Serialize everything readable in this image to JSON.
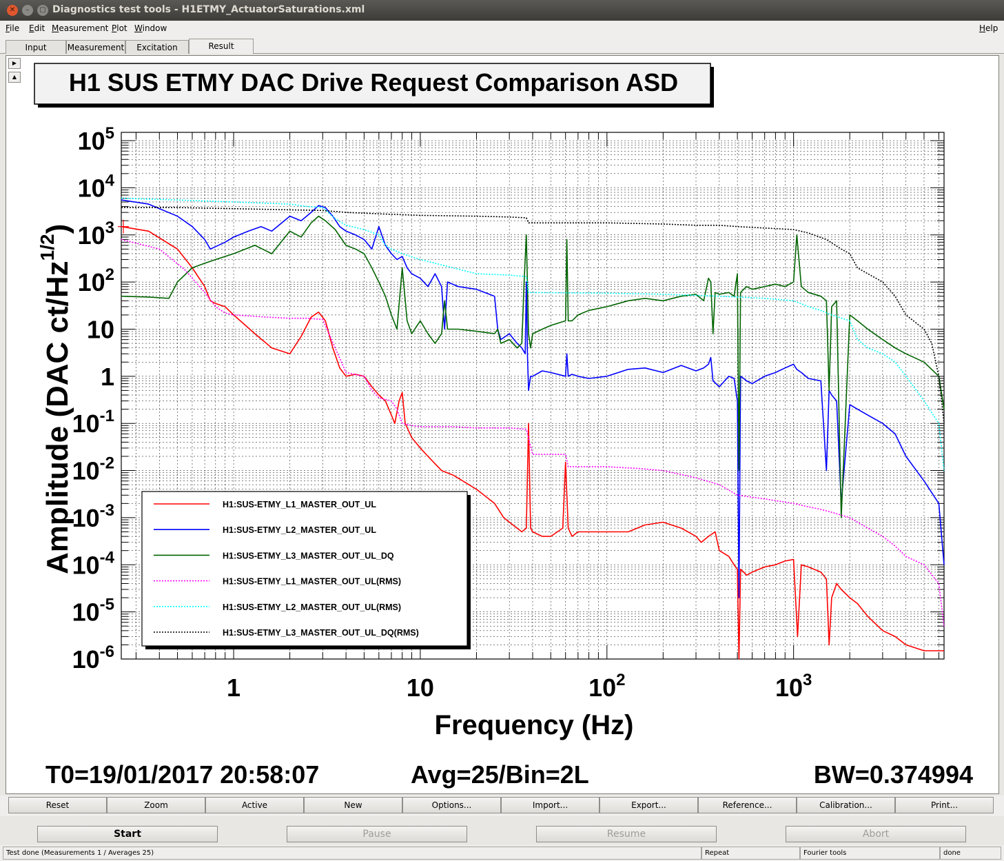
{
  "window": {
    "title": "Diagnostics test tools - H1ETMY_ActuatorSaturations.xml",
    "controls": [
      "✕",
      "–",
      "▢"
    ]
  },
  "menu": {
    "items": [
      {
        "label": "File",
        "u": "F",
        "rest": "ile"
      },
      {
        "label": "Edit",
        "u": "E",
        "rest": "dit"
      },
      {
        "label": "Measurement",
        "u": "M",
        "rest": "easurement"
      },
      {
        "label": "Plot",
        "u": "P",
        "rest": "lot"
      },
      {
        "label": "Window",
        "u": "W",
        "rest": "indow"
      }
    ],
    "help": {
      "label": "Help",
      "u": "H",
      "rest": "elp"
    }
  },
  "tabs": [
    {
      "label": "Input",
      "active": false
    },
    {
      "label": "Measurement",
      "active": false
    },
    {
      "label": "Excitation",
      "active": false
    },
    {
      "label": "Result",
      "active": true
    }
  ],
  "scroll": {
    "up": "▶",
    "down": "▲"
  },
  "plot_info": {
    "t0": "T0=19/01/2017 20:58:07",
    "avg": "Avg=25/Bin=2L",
    "bw": "BW=0.374994"
  },
  "chart_data": {
    "type": "line",
    "title": "H1 SUS ETMY  DAC Drive Request Comparison ASD",
    "xlabel": "Frequency (Hz)",
    "ylabel": "Amplitude (DAC ct/Hz",
    "ylabel_sup": "1/2",
    "ylabel_close": ")",
    "x_scale": "log",
    "y_scale": "log",
    "xlim": [
      0.25,
      6400
    ],
    "ylim": [
      1e-06,
      150000.0
    ],
    "grid": true,
    "legend_position": "bottom-left",
    "x_ticks": [
      {
        "v": 1,
        "base": "1",
        "exp": ""
      },
      {
        "v": 10,
        "base": "10",
        "exp": ""
      },
      {
        "v": 100,
        "base": "10",
        "exp": "2"
      },
      {
        "v": 1000,
        "base": "10",
        "exp": "3"
      }
    ],
    "y_ticks": [
      {
        "v": 100000,
        "base": "10",
        "exp": "5"
      },
      {
        "v": 10000,
        "base": "10",
        "exp": "4"
      },
      {
        "v": 1000,
        "base": "10",
        "exp": "3"
      },
      {
        "v": 100,
        "base": "10",
        "exp": "2"
      },
      {
        "v": 10,
        "base": "10",
        "exp": ""
      },
      {
        "v": 1,
        "base": "1",
        "exp": ""
      },
      {
        "v": 0.1,
        "base": "10",
        "exp": "-1"
      },
      {
        "v": 0.01,
        "base": "10",
        "exp": "-2"
      },
      {
        "v": 0.001,
        "base": "10",
        "exp": "-3"
      },
      {
        "v": 0.0001,
        "base": "10",
        "exp": "-4"
      },
      {
        "v": 1e-05,
        "base": "10",
        "exp": "-5"
      },
      {
        "v": 1e-06,
        "base": "10",
        "exp": "-6"
      }
    ],
    "series": [
      {
        "name": "H1:SUS-ETMY_L1_MASTER_OUT_UL",
        "color": "#ff0000",
        "dash": false,
        "x": [
          0.25,
          0.35,
          0.5,
          0.6,
          0.7,
          0.75,
          0.8,
          0.9,
          1.0,
          1.3,
          1.6,
          2.0,
          2.3,
          2.6,
          2.85,
          3.1,
          3.4,
          3.7,
          4.0,
          4.5,
          5.0,
          5.5,
          6.0,
          6.5,
          7.0,
          7.3,
          7.7,
          8.0,
          8.3,
          9.0,
          10,
          11,
          13,
          15,
          20,
          25,
          28,
          30,
          35,
          37,
          38,
          39,
          40,
          45,
          50,
          58,
          60,
          62,
          65,
          70,
          80,
          100,
          130,
          160,
          200,
          250,
          300,
          320,
          350,
          380,
          400,
          450,
          480,
          500,
          510,
          520,
          540,
          560,
          600,
          700,
          800,
          900,
          1000,
          1050,
          1100,
          1200,
          1400,
          1500,
          1550,
          1600,
          1700,
          1800,
          2000,
          2200,
          2500,
          3000,
          3500,
          4000,
          5000,
          6000,
          6400
        ],
        "y": [
          1500.0,
          1200.0,
          500.0,
          200.0,
          80.0,
          40.0,
          35.0,
          30.0,
          20.0,
          8,
          4,
          3,
          7,
          18.0,
          23.0,
          15.0,
          4,
          1.5,
          1,
          1.1,
          1,
          0.6,
          0.4,
          0.3,
          0.15,
          0.1,
          0.3,
          0.45,
          0.1,
          0.05,
          0.03,
          0.02,
          0.01,
          0.008,
          0.004,
          0.002,
          0.001,
          0.0008,
          0.0005,
          0.0006,
          0.1,
          0.0006,
          0.0005,
          0.0004,
          0.0004,
          0.0006,
          0.015,
          0.0006,
          0.0004,
          0.0005,
          0.0005,
          0.0005,
          0.0005,
          0.0007,
          0.0008,
          0.0006,
          0.0004,
          0.0003,
          0.0004,
          0.0005,
          0.0002,
          0.00015,
          0.0001,
          8e-05,
          1e-06,
          8e-05,
          7e-05,
          6e-05,
          7e-05,
          9e-05,
          0.0001,
          0.00012,
          0.00013,
          3e-06,
          0.0001,
          9e-05,
          7e-05,
          5e-05,
          2e-06,
          2e-05,
          4e-05,
          3e-05,
          2e-05,
          1.5e-05,
          8e-06,
          4e-06,
          3e-06,
          2e-06,
          1.5e-06,
          1.5e-06,
          1.5e-06
        ]
      },
      {
        "name": "H1:SUS-ETMY_L2_MASTER_OUT_UL",
        "color": "#0000ff",
        "dash": false,
        "x": [
          0.25,
          0.35,
          0.5,
          0.6,
          0.7,
          0.75,
          0.9,
          1.0,
          1.2,
          1.4,
          1.6,
          2.0,
          2.3,
          2.6,
          2.85,
          3.1,
          3.4,
          3.7,
          4.0,
          4.5,
          5.0,
          5.5,
          6.0,
          6.5,
          7.0,
          7.5,
          8.0,
          8.5,
          9.0,
          10,
          11,
          12,
          13,
          13.5,
          14,
          16,
          20,
          25,
          26,
          27,
          30,
          33,
          35,
          36.5,
          37,
          37.5,
          38,
          39,
          40,
          45,
          50,
          60,
          61,
          62,
          65,
          70,
          80,
          100,
          130,
          160,
          200,
          250,
          300,
          330,
          350,
          360,
          370,
          400,
          450,
          480,
          500,
          510,
          520,
          540,
          560,
          600,
          700,
          800,
          900,
          1000,
          1040,
          1100,
          1200,
          1400,
          1500,
          1550,
          1600,
          1700,
          1800,
          2000,
          2200,
          2500,
          3000,
          3500,
          4000,
          5000,
          6000,
          6400
        ],
        "y": [
          5500.0,
          4500.0,
          2500.0,
          1500.0,
          800.0,
          500.0,
          700.0,
          900.0,
          1200.0,
          1500.0,
          1200.0,
          2500.0,
          2000.0,
          3000.0,
          4200.0,
          3800.0,
          2500.0,
          1500.0,
          1200.0,
          1000.0,
          800.0,
          500.0,
          1500.0,
          600.0,
          400.0,
          300.0,
          350.0,
          200.0,
          150.0,
          120.0,
          80.0,
          150.0,
          80.0,
          10.0,
          100.0,
          80.0,
          70.0,
          50.0,
          10.0,
          6,
          8,
          5,
          4,
          3,
          100.0,
          3,
          0.5,
          1,
          1,
          1.3,
          1.2,
          1,
          3,
          1,
          1.1,
          1,
          0.9,
          1,
          1.4,
          1.5,
          1.2,
          1.7,
          1.3,
          1.5,
          1.8,
          2.5,
          0.8,
          0.6,
          1,
          0.9,
          0.3,
          2e-05,
          1,
          0.9,
          0.8,
          0.7,
          1,
          1.2,
          1.5,
          1.8,
          1.4,
          1.2,
          0.9,
          0.8,
          0.01,
          0.5,
          0.4,
          0.3,
          0.002,
          0.25,
          0.2,
          0.15,
          0.1,
          0.06,
          0.02,
          0.006,
          0.002,
          0.0001
        ]
      },
      {
        "name": "H1:SUS-ETMY_L3_MASTER_OUT_UL_DQ",
        "color": "#006400",
        "dash": false,
        "x": [
          0.25,
          0.35,
          0.45,
          0.5,
          0.6,
          0.7,
          0.8,
          1.0,
          1.3,
          1.6,
          2.0,
          2.3,
          2.6,
          2.85,
          3.1,
          3.5,
          4.0,
          4.5,
          5.0,
          5.5,
          6.0,
          6.5,
          7.0,
          7.5,
          8.0,
          8.5,
          9.0,
          10,
          11,
          12,
          13,
          13.5,
          14,
          16,
          20,
          25,
          26,
          27,
          30,
          33,
          35,
          36,
          37,
          38,
          39,
          40,
          45,
          50,
          60,
          61,
          62,
          65,
          70,
          80,
          100,
          130,
          160,
          200,
          250,
          300,
          330,
          350,
          360,
          370,
          380,
          400,
          450,
          480,
          500,
          510,
          520,
          540,
          560,
          600,
          700,
          800,
          900,
          1000,
          1040,
          1100,
          1200,
          1400,
          1500,
          1550,
          1600,
          1700,
          1800,
          2000,
          2200,
          2500,
          3000,
          3500,
          4000,
          5000,
          6000,
          6400
        ],
        "y": [
          50.0,
          48.0,
          45.0,
          100.0,
          200.0,
          250.0,
          300.0,
          400.0,
          600.0,
          400.0,
          1200.0,
          900.0,
          1800.0,
          2500.0,
          2000.0,
          1300.0,
          600.0,
          500.0,
          400.0,
          200.0,
          100.0,
          50.0,
          20.0,
          10.0,
          200.0,
          15.0,
          8,
          15.0,
          8,
          5,
          8,
          40.0,
          10.0,
          10.0,
          9,
          8,
          10.0,
          5,
          6,
          4,
          5,
          100.0,
          1000.0,
          8,
          4,
          8,
          10.0,
          12.0,
          15.0,
          800.0,
          15.0,
          15.0,
          20.0,
          25.0,
          30.0,
          40.0,
          45.0,
          40.0,
          50.0,
          55.0,
          40.0,
          120.0,
          100.0,
          8,
          60.0,
          55.0,
          60.0,
          50.0,
          150.0,
          0.01,
          60.0,
          70.0,
          80.0,
          70.0,
          80.0,
          90.0,
          80.0,
          100.0,
          1000.0,
          80.0,
          60.0,
          50.0,
          40.0,
          0.5,
          30.0,
          40.0,
          0.001,
          20.0,
          15.0,
          10.0,
          6,
          4,
          3,
          2,
          1,
          0.2
        ]
      },
      {
        "name": "H1:SUS-ETMY_L1_MASTER_OUT_UL(RMS)",
        "color": "#ff00ff",
        "dash": true,
        "x": [
          0.25,
          0.4,
          0.55,
          0.7,
          0.8,
          0.9,
          1.0,
          1.5,
          2.0,
          2.5,
          3.0,
          3.5,
          4.0,
          5.0,
          5.5,
          6.0,
          7.0,
          7.5,
          8.0,
          9.0,
          10,
          15,
          20,
          25,
          30,
          37,
          40,
          50,
          60,
          62,
          100,
          150,
          200,
          300,
          400,
          500,
          700,
          1000,
          1200,
          1400,
          1600,
          2000,
          2500,
          3000,
          3500,
          4000,
          5000,
          6000,
          6400
        ],
        "y": [
          800.0,
          500.0,
          180.0,
          60.0,
          30.0,
          22.0,
          20.0,
          18.0,
          17.0,
          17.0,
          16.0,
          4,
          1.2,
          1,
          0.5,
          0.35,
          0.3,
          0.2,
          0.1,
          0.09,
          0.085,
          0.085,
          0.08,
          0.08,
          0.08,
          0.075,
          0.022,
          0.022,
          0.022,
          0.012,
          0.012,
          0.011,
          0.01,
          0.007,
          0.005,
          0.003,
          0.0025,
          0.002,
          0.0017,
          0.0015,
          0.0013,
          0.001,
          0.0006,
          0.0004,
          0.00025,
          0.00015,
          0.0001,
          4e-05,
          5e-06
        ]
      },
      {
        "name": "H1:SUS-ETMY_L2_MASTER_OUT_UL(RMS)",
        "color": "#00ffff",
        "dash": true,
        "x": [
          0.25,
          0.5,
          1.0,
          1.5,
          2.0,
          2.5,
          3.0,
          3.5,
          4.0,
          5.0,
          6.0,
          6.5,
          7.0,
          8.0,
          10,
          15,
          20,
          30,
          37,
          38,
          100,
          200,
          300,
          400,
          500,
          700,
          1000,
          1200,
          1400,
          1600,
          2000,
          2200,
          2500,
          3000,
          3500,
          4000,
          5000,
          6000,
          6400
        ],
        "y": [
          6000.0,
          5500.0,
          5000.0,
          4700.0,
          4500.0,
          4000.0,
          3800.0,
          2200.0,
          1600.0,
          1300.0,
          1000.0,
          600.0,
          500.0,
          400.0,
          300.0,
          200.0,
          150.0,
          140.0,
          130.0,
          60.0,
          58.0,
          55.0,
          52.0,
          50.0,
          48.0,
          45.0,
          40.0,
          30.0,
          25.0,
          20.0,
          15.0,
          6,
          4,
          3,
          2,
          1,
          0.3,
          0.1,
          0.01
        ]
      },
      {
        "name": "H1:SUS-ETMY_L3_MASTER_OUT_UL_DQ(RMS)",
        "color": "#000000",
        "dash": true,
        "x": [
          0.25,
          0.5,
          1.0,
          2.0,
          3.0,
          4.0,
          6.0,
          10,
          20,
          30,
          37,
          38,
          50,
          100,
          200,
          300,
          400,
          500,
          700,
          1000,
          1200,
          1500,
          1800,
          2000,
          2200,
          2500,
          3000,
          3500,
          4000,
          5000,
          5500,
          6000,
          6400
        ],
        "y": [
          3800.0,
          3800.0,
          3600.0,
          3400.0,
          3300.0,
          3000.0,
          2800.0,
          2600.0,
          2500.0,
          2400.0,
          2300.0,
          1800.0,
          1800.0,
          1800.0,
          1700.0,
          1600.0,
          1600.0,
          1500.0,
          1400.0,
          1300.0,
          1100.0,
          800.0,
          500.0,
          400.0,
          200.0,
          150.0,
          100.0,
          50.0,
          20.0,
          10.0,
          5,
          1,
          0.1
        ]
      }
    ]
  },
  "plot_buttons": [
    "Reset",
    "Zoom",
    "Active",
    "New",
    "Options...",
    "Import...",
    "Export...",
    "Reference...",
    "Calibration...",
    "Print..."
  ],
  "controls": {
    "start": "Start",
    "pause": "Pause",
    "resume": "Resume",
    "abort": "Abort"
  },
  "status": {
    "message": "Test done (Measurements 1 / Averages 25)",
    "mode": "Repeat",
    "tool": "Fourier tools",
    "state": "done"
  }
}
